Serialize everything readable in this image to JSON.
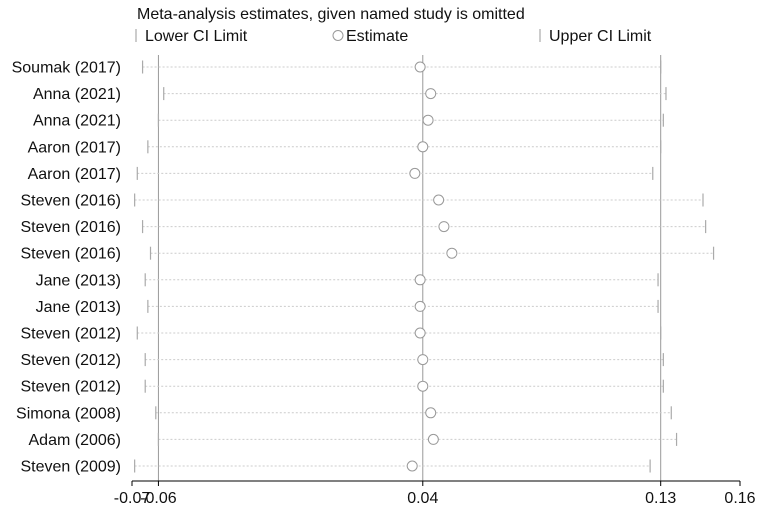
{
  "chart_data": {
    "type": "scatter",
    "title": "Meta-analysis estimates, given named study is omitted",
    "legend": {
      "placement": "top",
      "entries": [
        {
          "symbol": "tick",
          "label": "Lower CI Limit"
        },
        {
          "symbol": "circle",
          "label": "Estimate"
        },
        {
          "symbol": "tick",
          "label": "Upper CI Limit"
        }
      ]
    },
    "x_axis": {
      "range": [
        -0.07,
        0.16
      ],
      "ticks": [
        {
          "value": -0.07,
          "label": "-0.07"
        },
        {
          "value": -0.06,
          "label": "-0.06"
        },
        {
          "value": 0.04,
          "label": "0.04"
        },
        {
          "value": 0.13,
          "label": "0.13"
        },
        {
          "value": 0.16,
          "label": "0.16"
        }
      ],
      "reference_lines": [
        -0.06,
        0.04,
        0.13
      ]
    },
    "studies": [
      {
        "label": "Soumak (2017)",
        "lower": -0.066,
        "estimate": 0.039,
        "upper": 0.13
      },
      {
        "label": "Anna (2021)",
        "lower": -0.058,
        "estimate": 0.043,
        "upper": 0.132
      },
      {
        "label": "Anna (2021)",
        "lower": -0.06,
        "estimate": 0.042,
        "upper": 0.131
      },
      {
        "label": "Aaron (2017)",
        "lower": -0.064,
        "estimate": 0.04,
        "upper": 0.13
      },
      {
        "label": "Aaron (2017)",
        "lower": -0.068,
        "estimate": 0.037,
        "upper": 0.127
      },
      {
        "label": "Steven (2016)",
        "lower": -0.069,
        "estimate": 0.046,
        "upper": 0.146
      },
      {
        "label": "Steven (2016)",
        "lower": -0.066,
        "estimate": 0.048,
        "upper": 0.147
      },
      {
        "label": "Steven (2016)",
        "lower": -0.063,
        "estimate": 0.051,
        "upper": 0.15
      },
      {
        "label": "Jane (2013)",
        "lower": -0.065,
        "estimate": 0.039,
        "upper": 0.129
      },
      {
        "label": "Jane (2013)",
        "lower": -0.064,
        "estimate": 0.039,
        "upper": 0.129
      },
      {
        "label": "Steven (2012)",
        "lower": -0.068,
        "estimate": 0.039,
        "upper": 0.13
      },
      {
        "label": "Steven (2012)",
        "lower": -0.065,
        "estimate": 0.04,
        "upper": 0.131
      },
      {
        "label": "Steven (2012)",
        "lower": -0.065,
        "estimate": 0.04,
        "upper": 0.131
      },
      {
        "label": "Simona (2008)",
        "lower": -0.061,
        "estimate": 0.043,
        "upper": 0.134
      },
      {
        "label": "Adam (2006)",
        "lower": -0.06,
        "estimate": 0.044,
        "upper": 0.136
      },
      {
        "label": "Steven (2009)",
        "lower": -0.069,
        "estimate": 0.036,
        "upper": 0.126
      }
    ]
  }
}
